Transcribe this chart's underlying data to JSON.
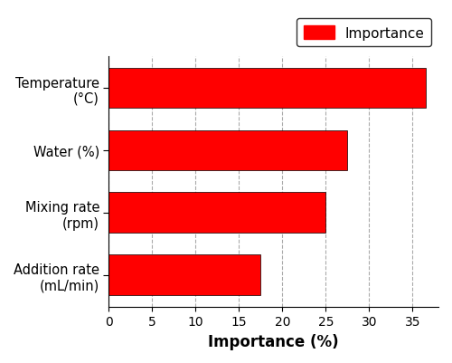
{
  "categories": [
    "Addition rate\n(mL/min)",
    "Mixing rate\n(rpm)",
    "Water (%)",
    "Temperature\n(°C)"
  ],
  "values": [
    17.5,
    25.0,
    27.5,
    36.5
  ],
  "bar_color": "#ff0000",
  "xlabel": "Importance (%)",
  "xlim": [
    0,
    38
  ],
  "xticks": [
    0,
    5,
    10,
    15,
    20,
    25,
    30,
    35
  ],
  "legend_label": "Importance",
  "bar_height": 0.65,
  "grid_color": "#aaaaaa",
  "grid_style": "--"
}
